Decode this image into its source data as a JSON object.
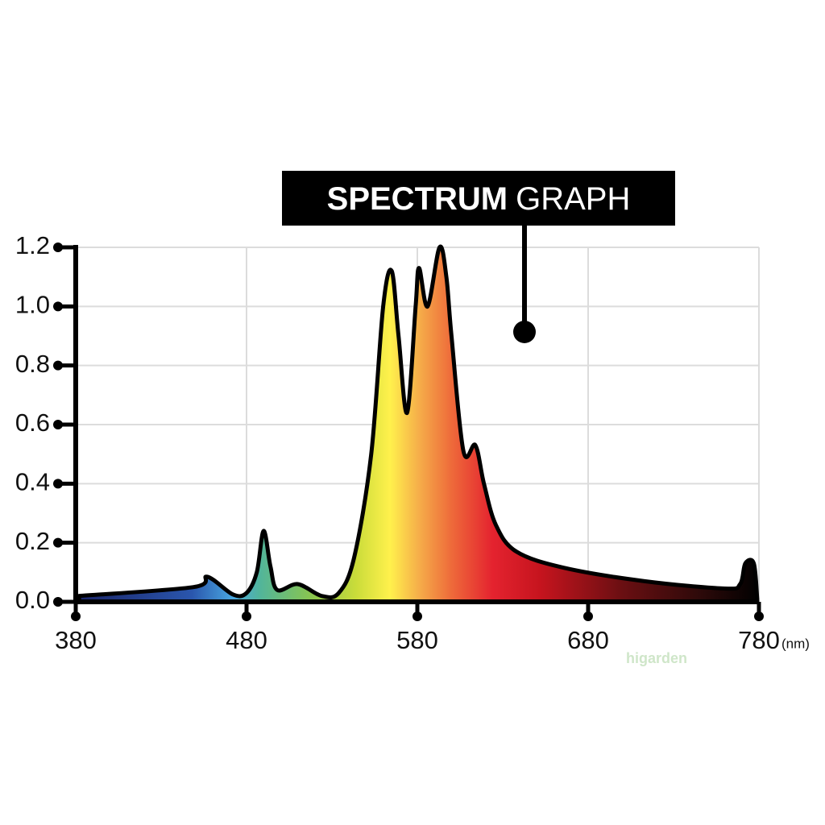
{
  "chart_data": {
    "type": "area",
    "title": [
      "SPECTRUM",
      "GRAPH"
    ],
    "xlabel": "(nm)",
    "watermark": "higarden",
    "x": [
      382,
      449,
      457,
      472,
      480,
      486,
      490,
      494,
      498,
      510,
      524,
      534,
      543,
      553,
      560,
      565,
      569,
      574,
      579,
      581,
      586,
      593,
      597,
      600,
      607,
      614,
      619,
      626,
      638,
      666,
      713,
      760,
      769,
      772,
      777,
      779
    ],
    "values": [
      0.02,
      0.05,
      0.085,
      0.025,
      0.03,
      0.1,
      0.24,
      0.12,
      0.04,
      0.06,
      0.02,
      0.03,
      0.15,
      0.5,
      1.0,
      1.12,
      0.9,
      0.64,
      1.0,
      1.13,
      1.0,
      1.2,
      1.1,
      0.9,
      0.51,
      0.53,
      0.4,
      0.26,
      0.17,
      0.115,
      0.07,
      0.045,
      0.06,
      0.13,
      0.13,
      0.01
    ],
    "xlim": [
      380,
      780
    ],
    "xticks": [
      380,
      480,
      580,
      680,
      780
    ],
    "ylim": [
      0,
      1.2
    ],
    "yticks": [
      {
        "value": 0,
        "label": "0.0"
      },
      0.2,
      0.4,
      0.6,
      0.8,
      {
        "value": 1,
        "label": "1.0"
      },
      1.2
    ],
    "grid": true
  }
}
